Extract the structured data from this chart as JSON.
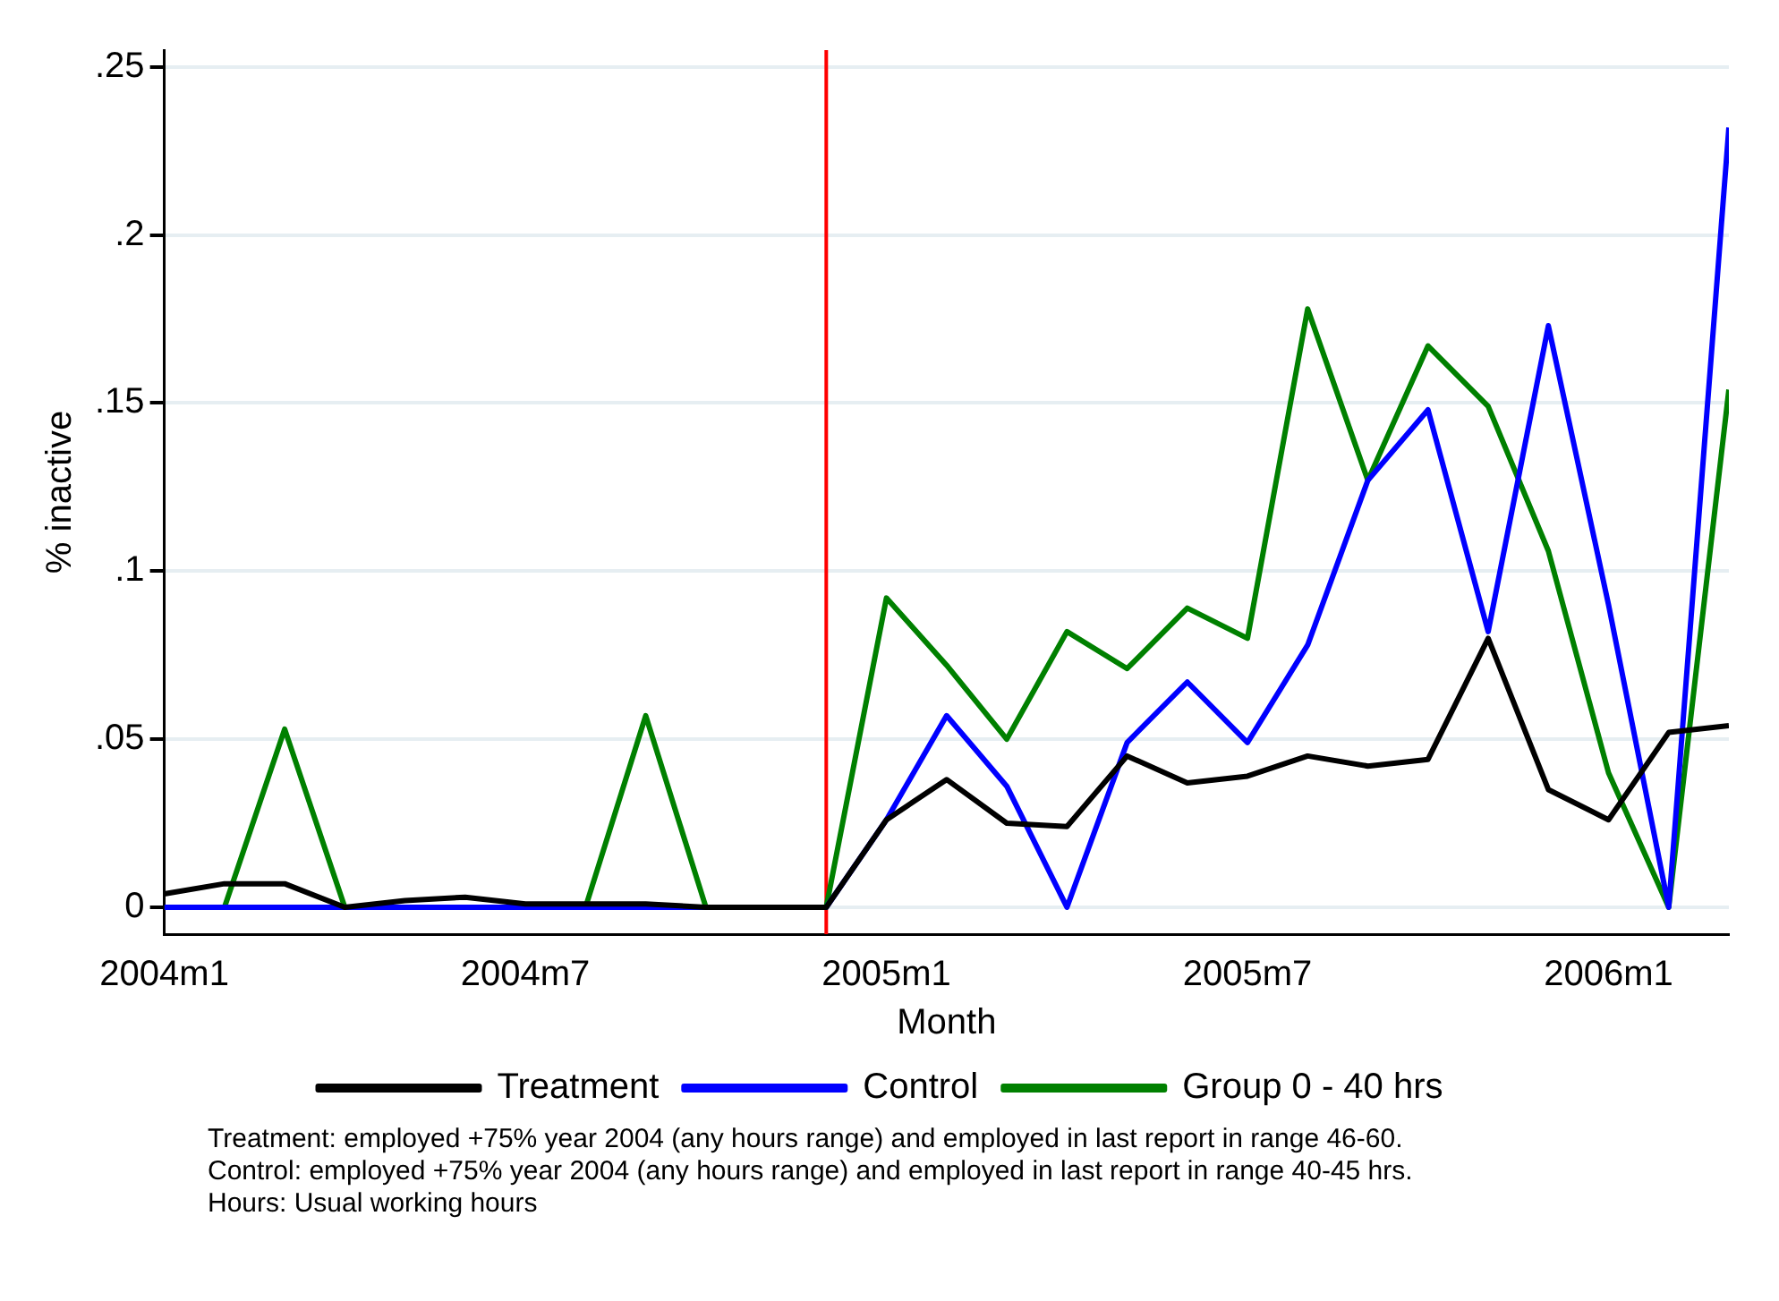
{
  "chart_data": {
    "type": "line",
    "xlabel": "Month",
    "ylabel": "% inactive",
    "x": [
      "2004-01",
      "2004-02",
      "2004-03",
      "2004-04",
      "2004-05",
      "2004-06",
      "2004-07",
      "2004-08",
      "2004-09",
      "2004-10",
      "2004-11",
      "2004-12",
      "2005-01",
      "2005-02",
      "2005-03",
      "2005-04",
      "2005-05",
      "2005-06",
      "2005-07",
      "2005-08",
      "2005-09",
      "2005-10",
      "2005-11",
      "2005-12",
      "2006-01",
      "2006-02",
      "2006-03"
    ],
    "series": [
      {
        "name": "Treatment",
        "color": "#000000",
        "values": [
          0.004,
          0.007,
          0.007,
          0,
          0.002,
          0.003,
          0.001,
          0.001,
          0.001,
          0,
          0,
          0,
          0.026,
          0.038,
          0.025,
          0.024,
          0.045,
          0.037,
          0.039,
          0.045,
          0.042,
          0.044,
          0.08,
          0.035,
          0.026,
          0.052,
          0.054
        ]
      },
      {
        "name": "Control",
        "color": "#0000ff",
        "values": [
          0,
          0,
          0,
          0,
          0,
          0,
          0,
          0,
          0,
          0,
          0,
          0,
          0.026,
          0.057,
          0.036,
          0,
          0.049,
          0.067,
          0.049,
          0.078,
          0.127,
          0.148,
          0.082,
          0.173,
          0.09,
          0,
          0.232
        ]
      },
      {
        "name": "Group 0 - 40 hrs",
        "color": "#008000",
        "values": [
          0,
          0,
          0.053,
          0,
          0,
          0,
          0,
          0,
          0.057,
          0,
          0,
          0,
          0.092,
          0.072,
          0.05,
          0.082,
          0.071,
          0.089,
          0.08,
          0.178,
          0.127,
          0.167,
          0.149,
          0.106,
          0.04,
          0,
          0.154
        ]
      }
    ],
    "xlim": [
      "2004-01",
      "2006-03"
    ],
    "xticks": [
      {
        "value": "2004-01",
        "label": "2004m1"
      },
      {
        "value": "2004-07",
        "label": "2004m7"
      },
      {
        "value": "2005-01",
        "label": "2005m1"
      },
      {
        "value": "2005-07",
        "label": "2005m7"
      },
      {
        "value": "2006-01",
        "label": "2006m1"
      }
    ],
    "ylim": [
      -0.008,
      0.255
    ],
    "yticks": [
      {
        "value": 0,
        "label": "0"
      },
      {
        "value": 0.05,
        "label": ".05"
      },
      {
        "value": 0.1,
        "label": ".1"
      },
      {
        "value": 0.15,
        "label": ".15"
      },
      {
        "value": 0.2,
        "label": ".2"
      },
      {
        "value": 0.25,
        "label": ".25"
      }
    ],
    "grid": "y",
    "legend": "bottom",
    "marker": "none",
    "line_style": "solid",
    "ref_lines": [
      {
        "axis": "x",
        "value": "2004-12",
        "color": "#ff0000"
      }
    ],
    "annotations": [
      "Treatment: employed +75% year 2004 (any hours range) and employed in last report in range 46-60.",
      "Control: employed +75% year 2004 (any hours range) and employed in last report in range 40-45 hrs.",
      "Hours: Usual working hours"
    ]
  }
}
